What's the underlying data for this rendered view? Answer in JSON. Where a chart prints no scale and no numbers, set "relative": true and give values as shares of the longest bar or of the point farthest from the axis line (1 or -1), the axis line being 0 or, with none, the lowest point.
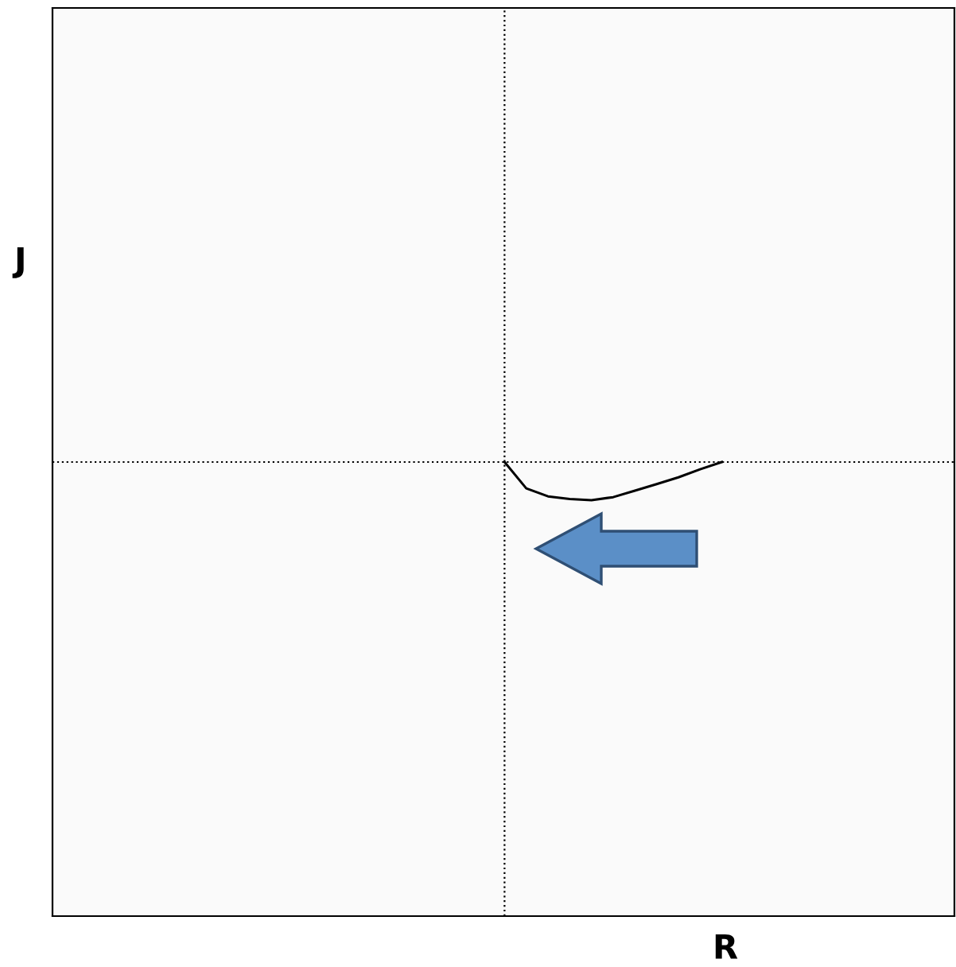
{
  "chart_data": {
    "type": "line",
    "relative": true,
    "annotations": [
      "R",
      "J"
    ],
    "categories": [
      null,
      null,
      null,
      null,
      null,
      null,
      null,
      null,
      null,
      null,
      null
    ],
    "series": [
      {
        "color": "#000000",
        "values": [
          0,
          -0.69,
          -0.9,
          -0.97,
          -1,
          -0.92,
          -0.75,
          -0.58,
          -0.4,
          -0.19,
          0
        ]
      }
    ],
    "marker": "none",
    "line_style": "solid"
  }
}
